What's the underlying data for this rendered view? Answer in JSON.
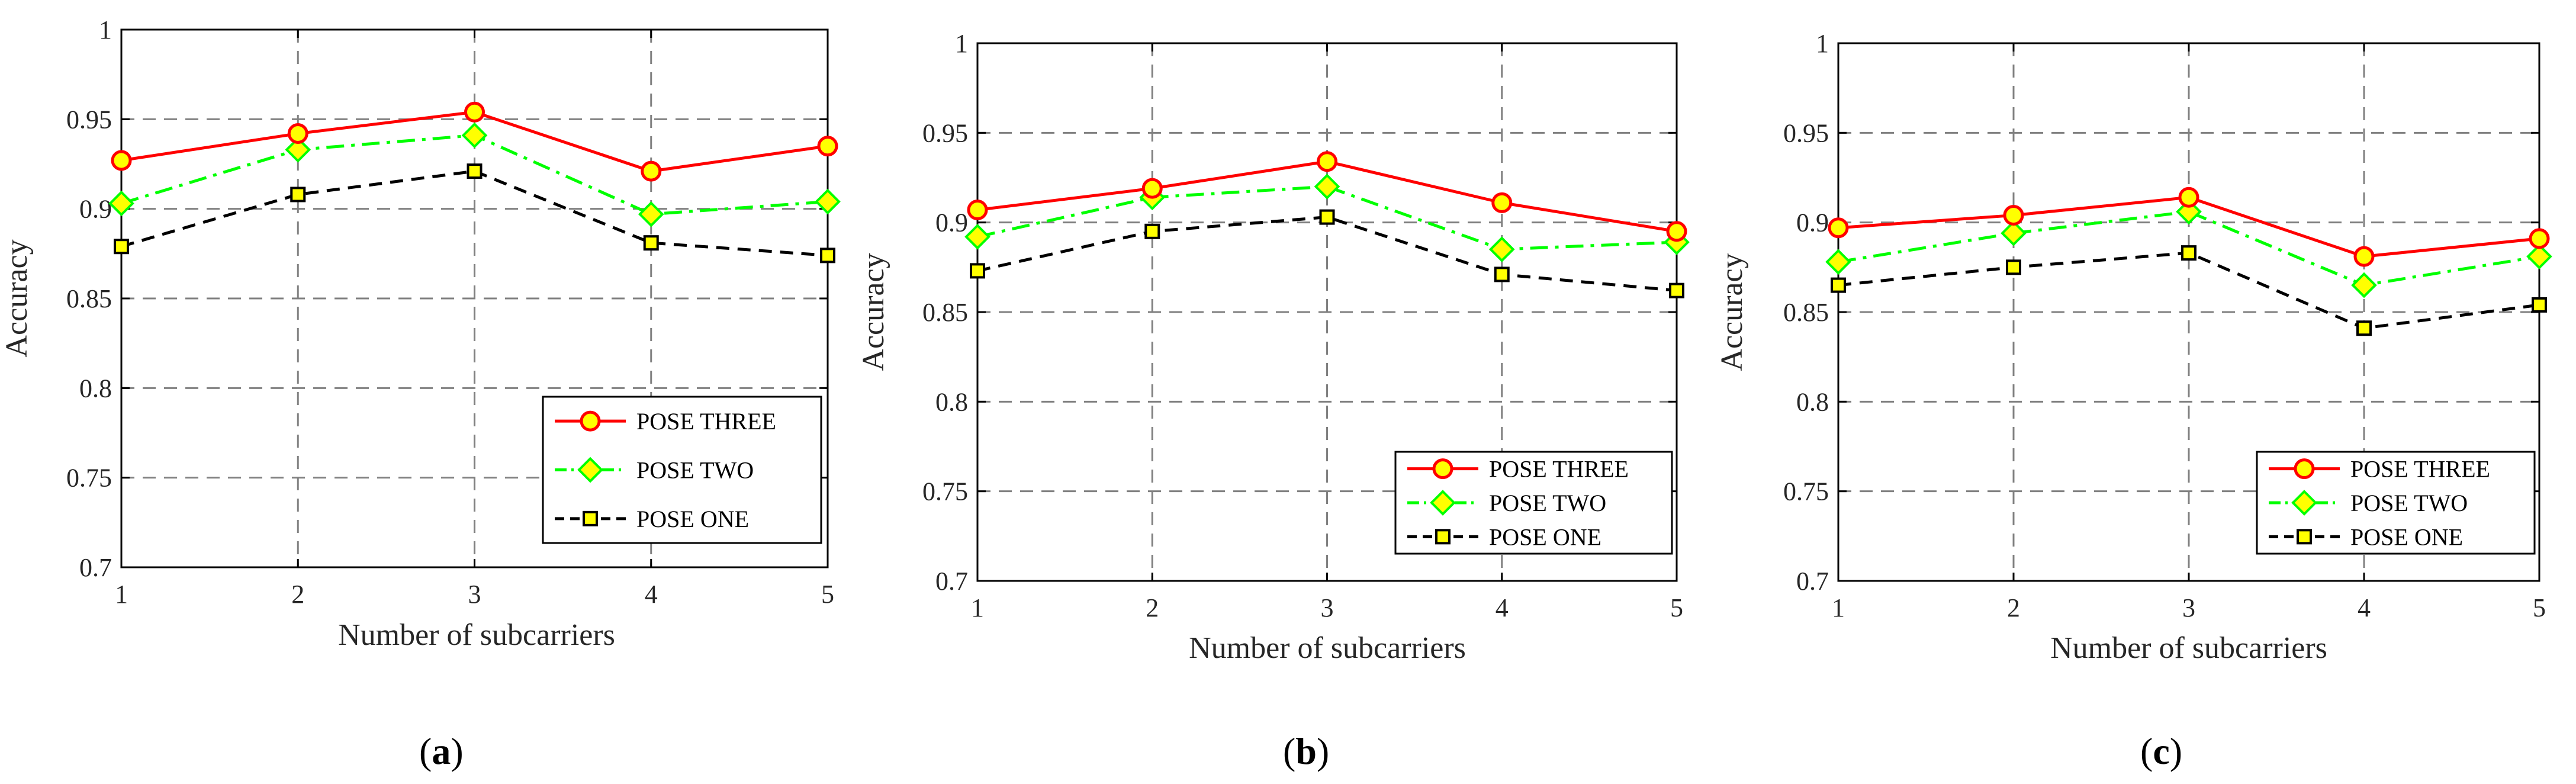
{
  "figure": {
    "panel_labels": [
      "a",
      "b",
      "c"
    ]
  },
  "colors": {
    "pose_three_line": "#ff0000",
    "pose_three_marker_fill": "#ffff00",
    "pose_two_line": "#00ff00",
    "pose_two_marker_fill": "#ffff00",
    "pose_one_line": "#000000",
    "pose_one_marker_fill": "#ffff00",
    "grid": "#808080",
    "axes": "#000000"
  },
  "chart_data": [
    {
      "type": "line",
      "label": "(a)",
      "xlabel": "Number of subcarriers",
      "ylabel": "Accuracy",
      "x": [
        1,
        2,
        3,
        4,
        5
      ],
      "xlim": [
        1,
        5
      ],
      "ylim": [
        0.7,
        1
      ],
      "xticks": [
        "1",
        "2",
        "3",
        "4",
        "5"
      ],
      "yticks": [
        "0.7",
        "0.75",
        "0.8",
        "0.85",
        "0.9",
        "0.95",
        "1"
      ],
      "grid": true,
      "legend_position": "bottom-right",
      "series": [
        {
          "name": "POSE THREE",
          "style": "solid",
          "marker": "circle",
          "values": [
            0.927,
            0.942,
            0.954,
            0.921,
            0.935
          ]
        },
        {
          "name": "POSE TWO",
          "style": "dash-dot",
          "marker": "diamond",
          "values": [
            0.903,
            0.933,
            0.941,
            0.897,
            0.904
          ]
        },
        {
          "name": "POSE ONE",
          "style": "dashed",
          "marker": "square",
          "values": [
            0.879,
            0.908,
            0.921,
            0.881,
            0.874
          ]
        }
      ]
    },
    {
      "type": "line",
      "label": "(b)",
      "xlabel": "Number of subcarriers",
      "ylabel": "Accuracy",
      "x": [
        1,
        2,
        3,
        4,
        5
      ],
      "xlim": [
        1,
        5
      ],
      "ylim": [
        0.7,
        1
      ],
      "xticks": [
        "1",
        "2",
        "3",
        "4",
        "5"
      ],
      "yticks": [
        "0.7",
        "0.75",
        "0.8",
        "0.85",
        "0.9",
        "0.95",
        "1"
      ],
      "grid": true,
      "legend_position": "bottom-right",
      "series": [
        {
          "name": "POSE THREE",
          "style": "solid",
          "marker": "circle",
          "values": [
            0.907,
            0.919,
            0.934,
            0.911,
            0.895
          ]
        },
        {
          "name": "POSE TWO",
          "style": "dash-dot",
          "marker": "diamond",
          "values": [
            0.892,
            0.914,
            0.92,
            0.885,
            0.889
          ]
        },
        {
          "name": "POSE ONE",
          "style": "dashed",
          "marker": "square",
          "values": [
            0.873,
            0.895,
            0.903,
            0.871,
            0.862
          ]
        }
      ]
    },
    {
      "type": "line",
      "label": "(c)",
      "xlabel": "Number of subcarriers",
      "ylabel": "Accuracy",
      "x": [
        1,
        2,
        3,
        4,
        5
      ],
      "xlim": [
        1,
        5
      ],
      "ylim": [
        0.7,
        1
      ],
      "xticks": [
        "1",
        "2",
        "3",
        "4",
        "5"
      ],
      "yticks": [
        "0.7",
        "0.75",
        "0.8",
        "0.85",
        "0.9",
        "0.95",
        "1"
      ],
      "grid": true,
      "legend_position": "bottom-right",
      "series": [
        {
          "name": "POSE THREE",
          "style": "solid",
          "marker": "circle",
          "values": [
            0.897,
            0.904,
            0.914,
            0.881,
            0.891
          ]
        },
        {
          "name": "POSE TWO",
          "style": "dash-dot",
          "marker": "diamond",
          "values": [
            0.878,
            0.894,
            0.906,
            0.865,
            0.881
          ]
        },
        {
          "name": "POSE ONE",
          "style": "dashed",
          "marker": "square",
          "values": [
            0.865,
            0.875,
            0.883,
            0.841,
            0.854
          ]
        }
      ]
    }
  ]
}
